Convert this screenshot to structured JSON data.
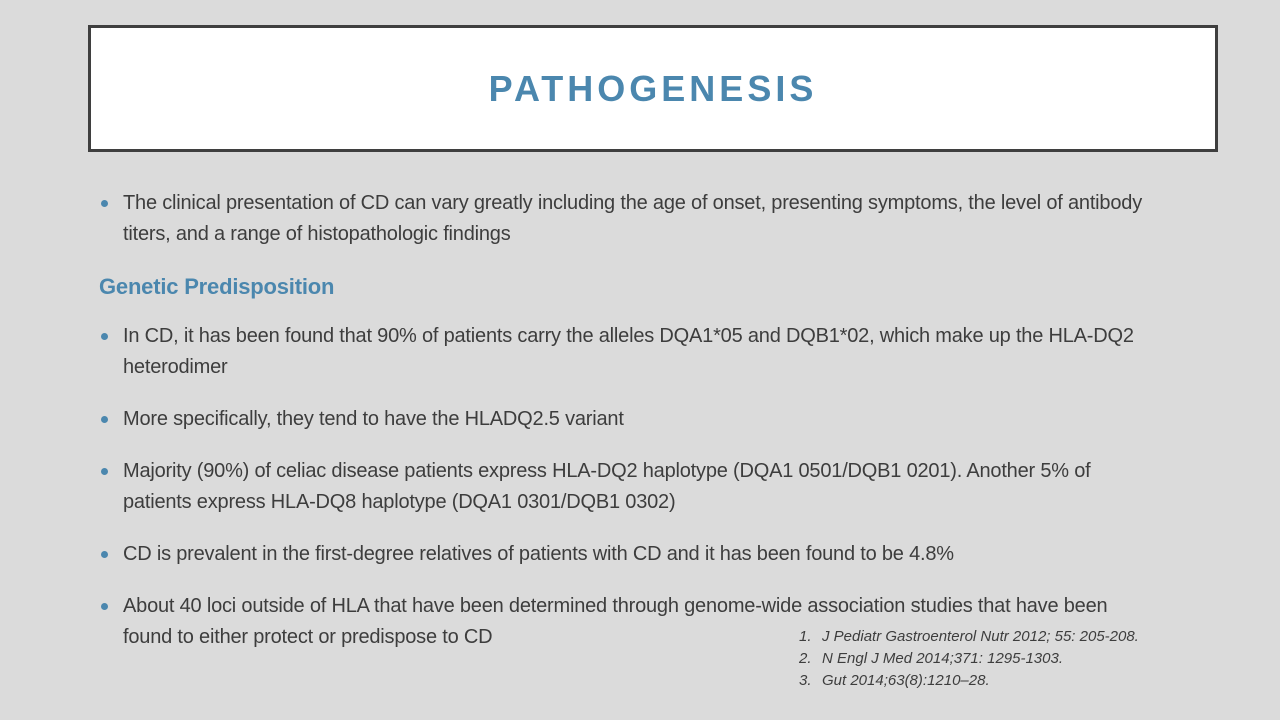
{
  "slide": {
    "title": "PATHOGENESIS",
    "colors": {
      "accent_blue": "#4b87ae",
      "background": "#dbdbdb",
      "body_text": "#3d3d3d",
      "title_box_border": "#3f3f3f",
      "title_box_fill": "#ffffff"
    },
    "content": [
      {
        "type": "bullet",
        "text": "The clinical presentation of CD can vary greatly including the age of onset, presenting symptoms, the level of antibody titers, and a range of histopathologic findings"
      },
      {
        "type": "heading",
        "text": "Genetic Predisposition"
      },
      {
        "type": "bullet",
        "text": "In CD, it has been found that 90% of patients carry the alleles DQA1*05 and DQB1*02, which make up the HLA-DQ2 heterodimer"
      },
      {
        "type": "bullet",
        "text": "More specifically, they tend to have the HLADQ2.5 variant"
      },
      {
        "type": "bullet",
        "text": "Majority (90%) of celiac disease patients express HLA-DQ2 haplotype (DQA1 0501/DQB1 0201). Another 5% of patients express HLA-DQ8 haplotype (DQA1 0301/DQB1 0302)"
      },
      {
        "type": "bullet",
        "text": "CD is prevalent in the first-degree relatives of patients with CD and it has been found to be 4.8%"
      },
      {
        "type": "bullet",
        "text": "About 40 loci outside of HLA that have been determined through genome-wide association studies that have been found to either protect or predispose to CD"
      }
    ],
    "references": {
      "items": [
        {
          "num": "1.",
          "text": "J Pediatr Gastroenterol Nutr 2012; 55: 205-208."
        },
        {
          "num": "2.",
          "text": "N Engl J Med 2014;371: 1295-1303."
        },
        {
          "num": "3.",
          "text": "Gut 2014;63(8):1210–28."
        }
      ]
    }
  }
}
